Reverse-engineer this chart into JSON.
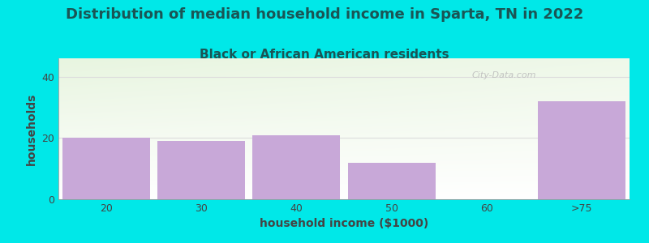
{
  "title": "Distribution of median household income in Sparta, TN in 2022",
  "subtitle": "Black or African American residents",
  "categories": [
    "20",
    "30",
    "40",
    "50",
    "60",
    ">75"
  ],
  "values": [
    20,
    19,
    21,
    12,
    0,
    32
  ],
  "bar_color": "#c8a8d8",
  "bar_edge_color": "#c8a8d8",
  "xlabel": "household income ($1000)",
  "ylabel": "households",
  "ylim": [
    0,
    46
  ],
  "yticks": [
    0,
    20,
    40
  ],
  "background_color": "#00e8e8",
  "plot_bg_color_top": "#e8f5e0",
  "plot_bg_color_bottom": "#ffffff",
  "title_fontsize": 13,
  "subtitle_fontsize": 11,
  "axis_label_fontsize": 10,
  "tick_fontsize": 9,
  "title_color": "#1a5555",
  "subtitle_color": "#1a5555",
  "axis_label_color": "#444444",
  "tick_color": "#444444",
  "watermark": "City-Data.com",
  "watermark_color": "#bbbbbb",
  "grid_color": "#dddddd",
  "bar_width": 0.92
}
